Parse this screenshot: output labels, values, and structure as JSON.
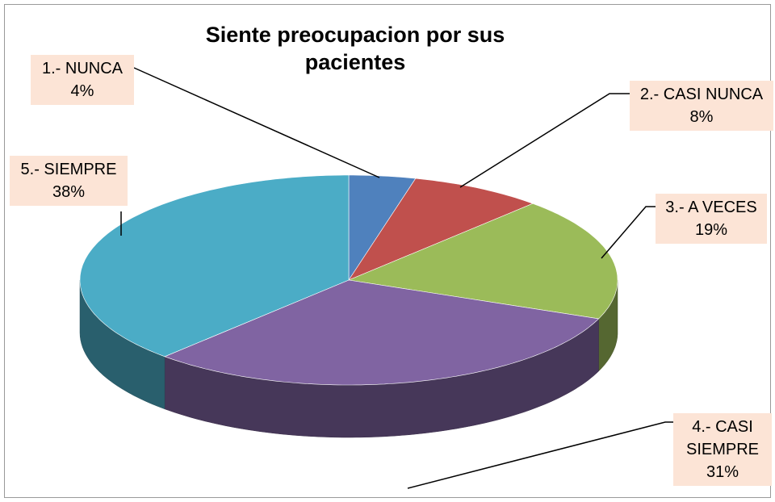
{
  "chart_data": {
    "type": "pie",
    "title": "Siente preocupacion por sus pacientes",
    "categories": [
      "1.- NUNCA",
      "2.- CASI NUNCA",
      "3.- A VECES",
      "4.- CASI SIEMPRE",
      "5.- SIEMPRE"
    ],
    "values": [
      4,
      8,
      19,
      31,
      38
    ],
    "value_labels": [
      "4%",
      "8%",
      "19%",
      "31%",
      "38%"
    ],
    "colors": [
      "#4f81bd",
      "#c0504d",
      "#9bbb59",
      "#8064a2",
      "#4bacc6"
    ]
  }
}
